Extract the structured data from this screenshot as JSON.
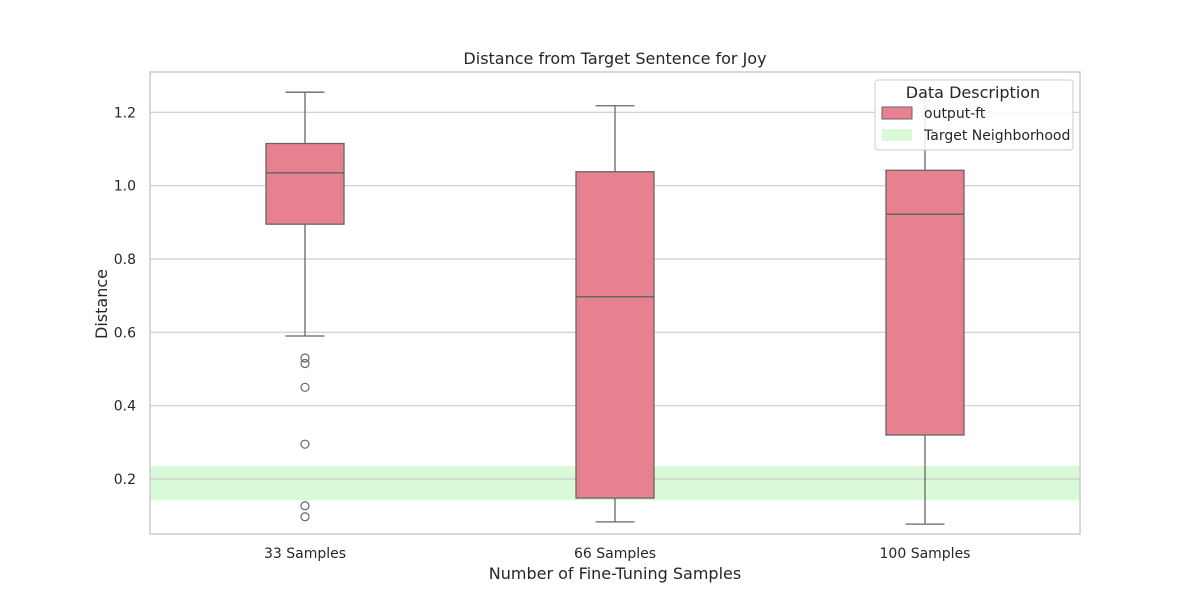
{
  "chart_data": {
    "type": "box",
    "title": "Distance from Target Sentence for Joy",
    "xlabel": "Number of Fine-Tuning Samples",
    "ylabel": "Distance",
    "ylim": [
      0.05,
      1.31
    ],
    "yticks": [
      0.2,
      0.4,
      0.6,
      0.8,
      1.0,
      1.2
    ],
    "ytick_labels": [
      "0.2",
      "0.4",
      "0.6",
      "0.8",
      "1.0",
      "1.2"
    ],
    "grid": true,
    "categories": [
      "33 Samples",
      "66 Samples",
      "100 Samples"
    ],
    "series": [
      {
        "name": "output-ft",
        "color": "#e8818f",
        "boxes": [
          {
            "category": "33 Samples",
            "whisker_low": 0.59,
            "q1": 0.895,
            "median": 1.035,
            "q3": 1.115,
            "whisker_high": 1.255,
            "outliers": [
              0.53,
              0.515,
              0.45,
              0.295,
              0.127,
              0.097
            ]
          },
          {
            "category": "66 Samples",
            "whisker_low": 0.083,
            "q1": 0.148,
            "median": 0.697,
            "q3": 1.038,
            "whisker_high": 1.218,
            "outliers": []
          },
          {
            "category": "100 Samples",
            "whisker_low": 0.077,
            "q1": 0.32,
            "median": 0.922,
            "q3": 1.042,
            "whisker_high": 1.25,
            "outliers": []
          }
        ]
      }
    ],
    "target_band": {
      "name": "Target Neighborhood",
      "low": 0.142,
      "high": 0.235,
      "center": 0.2,
      "color": "#d9f9d9"
    },
    "legend": {
      "title": "Data Description",
      "placement": "top-right",
      "entries": [
        {
          "label": "output-ft",
          "color": "#e8818f"
        },
        {
          "label": "Target Neighborhood",
          "color": "#d9f9d9"
        }
      ]
    }
  }
}
